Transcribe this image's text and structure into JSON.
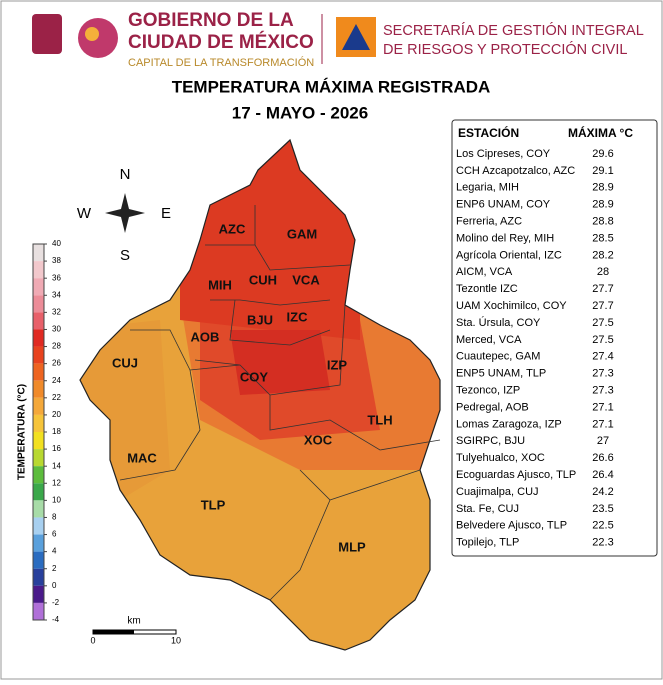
{
  "header": {
    "gov_lines": [
      "GOBIERNO DE LA",
      "CIUDAD DE MÉXICO"
    ],
    "gov_tagline": "CAPITAL DE LA TRANSFORMACIÓN",
    "secretaria_lines": [
      "SECRETARÍA DE GESTIÓN INTEGRAL",
      "DE RIESGOS Y PROTECCIÓN CIVIL"
    ]
  },
  "title": "TEMPERATURA MÁXIMA REGISTRADA",
  "date": "17 - MAYO - 2026",
  "table": {
    "columns": [
      "ESTACIÓN",
      "MÁXIMA °C"
    ],
    "rows": [
      [
        "Los Cipreses, COY",
        29.6
      ],
      [
        "CCH Azcapotzalco, AZC",
        29.1
      ],
      [
        "Legaria, MIH",
        28.9
      ],
      [
        "ENP6 UNAM,  COY",
        28.9
      ],
      [
        "Ferreria, AZC",
        28.8
      ],
      [
        "Molino del Rey, MIH",
        28.5
      ],
      [
        "Agrícola Oriental, IZC",
        28.2
      ],
      [
        "AICM, VCA",
        28
      ],
      [
        "Tezontle IZC",
        27.7
      ],
      [
        "UAM Xochimilco, COY",
        27.7
      ],
      [
        "Sta. Úrsula, COY",
        27.5
      ],
      [
        "Merced, VCA",
        27.5
      ],
      [
        "Cuautepec, GAM",
        27.4
      ],
      [
        "ENP5 UNAM,  TLP",
        27.3
      ],
      [
        "Tezonco, IZP",
        27.3
      ],
      [
        "Pedregal, AOB",
        27.1
      ],
      [
        "Lomas Zaragoza, IZP",
        27.1
      ],
      [
        "SGIRPC, BJU",
        27
      ],
      [
        "Tulyehualco, XOC",
        26.6
      ],
      [
        "Ecoguardas Ajusco, TLP",
        26.4
      ],
      [
        "Cuajimalpa, CUJ",
        24.2
      ],
      [
        "Sta. Fe, CUJ",
        23.5
      ],
      [
        "Belvedere Ajusco, TLP",
        22.5
      ],
      [
        "Topilejo, TLP",
        22.3
      ]
    ]
  },
  "colorbar": {
    "label": "TEMPERATURA (°C)",
    "ticks": [
      40,
      38,
      36,
      34,
      32,
      30,
      28,
      26,
      24,
      22,
      20,
      18,
      16,
      14,
      12,
      10,
      8,
      6,
      4,
      2,
      0,
      -2,
      -4
    ],
    "colors": [
      "#e8e0e0",
      "#f2c8cc",
      "#f0aab4",
      "#ec8c98",
      "#e8606a",
      "#e02a22",
      "#e8421e",
      "#ee6420",
      "#f08a2a",
      "#f4a83a",
      "#f6c43a",
      "#f2e020",
      "#b8d830",
      "#5cbc3c",
      "#3aa84a",
      "#a8dca8",
      "#a8d0f0",
      "#5aa0dc",
      "#2a6cc0",
      "#28409c",
      "#4a1a8a",
      "#b070d8"
    ]
  },
  "compass": {
    "n": "N",
    "s": "S",
    "w": "W",
    "e": "E"
  },
  "map_labels": [
    "AZC",
    "GAM",
    "CUH",
    "VCA",
    "MIH",
    "BJU",
    "IZC",
    "AOB",
    "CUJ",
    "COY",
    "IZP",
    "TLH",
    "XOC",
    "MAC",
    "TLP",
    "MLP"
  ],
  "scale": {
    "unit": "km",
    "ticks": [
      0,
      10
    ]
  }
}
